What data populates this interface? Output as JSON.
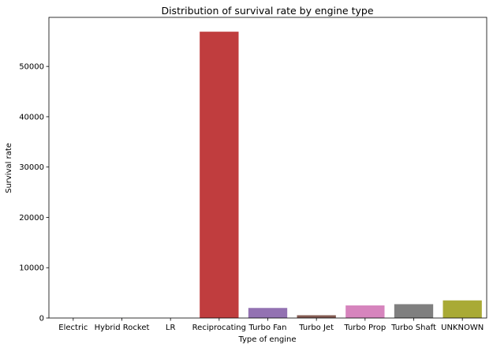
{
  "chart_data": {
    "type": "bar",
    "title": "Distribution of survival rate by engine type",
    "xlabel": "Type of engine",
    "ylabel": "Survival rate",
    "categories": [
      "Electric",
      "Hybrid Rocket",
      "LR",
      "Reciprocating",
      "Turbo Fan",
      "Turbo Jet",
      "Turbo Prop",
      "Turbo Shaft",
      "UNKNOWN"
    ],
    "values": [
      5,
      1,
      2,
      56900,
      2000,
      550,
      2500,
      2750,
      3500
    ],
    "colors": [
      "#3274a1",
      "#e1812c",
      "#3a923a",
      "#c03d3e",
      "#9372b2",
      "#845b53",
      "#d684bd",
      "#7f7f7f",
      "#a9aa35"
    ],
    "yticks": [
      0,
      10000,
      20000,
      30000,
      40000,
      50000
    ],
    "ytick_labels": [
      "0",
      "10000",
      "20000",
      "30000",
      "40000",
      "50000"
    ],
    "ylim": [
      0,
      59750
    ],
    "grid": false,
    "legend": "none"
  }
}
